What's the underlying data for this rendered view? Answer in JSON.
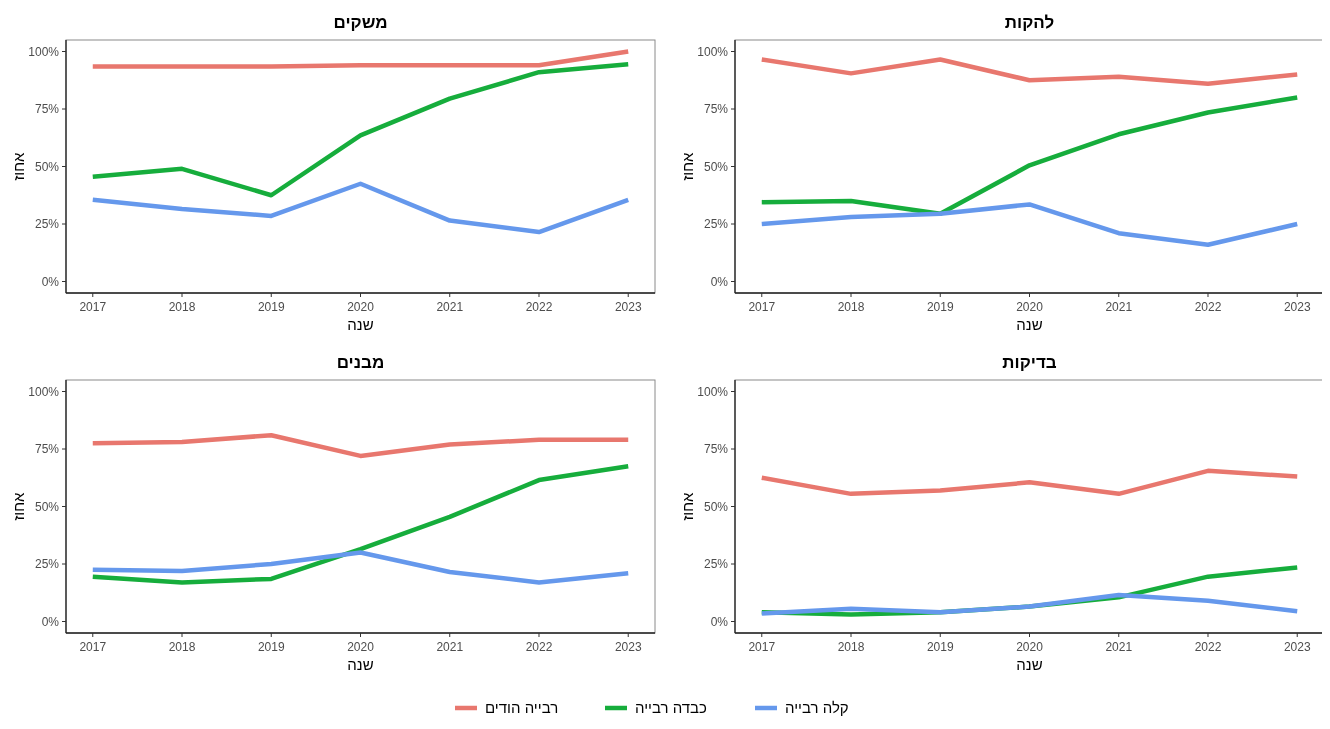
{
  "chart_data": [
    {
      "type": "line",
      "title": "משקים",
      "xlabel": "שנה",
      "ylabel": "אחוז",
      "legend": "bottom",
      "x": [
        2017,
        2018,
        2019,
        2020,
        2021,
        2022,
        2023
      ],
      "xlim": [
        2016.7,
        2023.3
      ],
      "xticks": [
        2017,
        2018,
        2019,
        2020,
        2021,
        2022,
        2023
      ],
      "ylim": [
        -5,
        105
      ],
      "yticks": [
        {
          "value": 0,
          "label": "0%"
        },
        {
          "value": 25,
          "label": "25%"
        },
        {
          "value": 50,
          "label": "50%"
        },
        {
          "value": 75,
          "label": "75%"
        },
        {
          "value": 100,
          "label": "100%"
        }
      ],
      "series": [
        {
          "name": "רבייה הודים",
          "color": "#e8776e",
          "values": [
            93.5,
            93.5,
            93.5,
            94,
            94,
            94,
            100
          ]
        },
        {
          "name": "כבדה רבייה",
          "color": "#16ad3c",
          "values": [
            45.5,
            49,
            37.5,
            63.5,
            79.5,
            91,
            94.5
          ]
        },
        {
          "name": "קלה רבייה",
          "color": "#6598ec",
          "values": [
            35.5,
            31.5,
            28.5,
            42.5,
            26.5,
            21.5,
            35.5
          ]
        }
      ]
    },
    {
      "type": "line",
      "title": "להקות",
      "xlabel": "שנה",
      "ylabel": "אחוז",
      "x": [
        2017,
        2018,
        2019,
        2020,
        2021,
        2022,
        2023
      ],
      "xlim": [
        2016.7,
        2023.3
      ],
      "xticks": [
        2017,
        2018,
        2019,
        2020,
        2021,
        2022,
        2023
      ],
      "ylim": [
        -5,
        105
      ],
      "yticks": [
        {
          "value": 0,
          "label": "0%"
        },
        {
          "value": 25,
          "label": "25%"
        },
        {
          "value": 50,
          "label": "50%"
        },
        {
          "value": 75,
          "label": "75%"
        },
        {
          "value": 100,
          "label": "100%"
        }
      ],
      "series": [
        {
          "color": "#e8776e",
          "values": [
            96.5,
            90.5,
            96.5,
            87.5,
            89,
            86,
            90
          ]
        },
        {
          "color": "#16ad3c",
          "values": [
            34.5,
            35,
            29.5,
            50.5,
            64,
            73.5,
            80
          ]
        },
        {
          "color": "#6598ec",
          "values": [
            25,
            28,
            29.5,
            33.5,
            21,
            16,
            25
          ]
        }
      ]
    },
    {
      "type": "line",
      "title": "מבנים",
      "xlabel": "שנה",
      "ylabel": "אחוז",
      "x": [
        2017,
        2018,
        2019,
        2020,
        2021,
        2022,
        2023
      ],
      "xlim": [
        2016.7,
        2023.3
      ],
      "xticks": [
        2017,
        2018,
        2019,
        2020,
        2021,
        2022,
        2023
      ],
      "ylim": [
        -5,
        105
      ],
      "yticks": [
        {
          "value": 0,
          "label": "0%"
        },
        {
          "value": 25,
          "label": "25%"
        },
        {
          "value": 50,
          "label": "50%"
        },
        {
          "value": 75,
          "label": "75%"
        },
        {
          "value": 100,
          "label": "100%"
        }
      ],
      "series": [
        {
          "color": "#e8776e",
          "values": [
            77.5,
            78,
            81,
            72,
            77,
            79,
            79
          ]
        },
        {
          "color": "#16ad3c",
          "values": [
            19.5,
            17,
            18.5,
            31.5,
            45.5,
            61.5,
            67.5
          ]
        },
        {
          "color": "#6598ec",
          "values": [
            22.5,
            22,
            25,
            30,
            21.5,
            17,
            21
          ]
        }
      ]
    },
    {
      "type": "line",
      "title": "בדיקות",
      "xlabel": "שנה",
      "ylabel": "אחוז",
      "x": [
        2017,
        2018,
        2019,
        2020,
        2021,
        2022,
        2023
      ],
      "xlim": [
        2016.7,
        2023.3
      ],
      "xticks": [
        2017,
        2018,
        2019,
        2020,
        2021,
        2022,
        2023
      ],
      "ylim": [
        -5,
        105
      ],
      "yticks": [
        {
          "value": 0,
          "label": "0%"
        },
        {
          "value": 25,
          "label": "25%"
        },
        {
          "value": 50,
          "label": "50%"
        },
        {
          "value": 75,
          "label": "75%"
        },
        {
          "value": 100,
          "label": "100%"
        }
      ],
      "series": [
        {
          "color": "#e8776e",
          "values": [
            62.5,
            55.5,
            57,
            60.5,
            55.5,
            65.5,
            63
          ]
        },
        {
          "color": "#16ad3c",
          "values": [
            4,
            3,
            4,
            6.5,
            10.5,
            19.5,
            23.5
          ]
        },
        {
          "color": "#6598ec",
          "values": [
            3.5,
            5.5,
            4,
            6.5,
            11.5,
            9,
            4.5
          ]
        }
      ]
    }
  ]
}
